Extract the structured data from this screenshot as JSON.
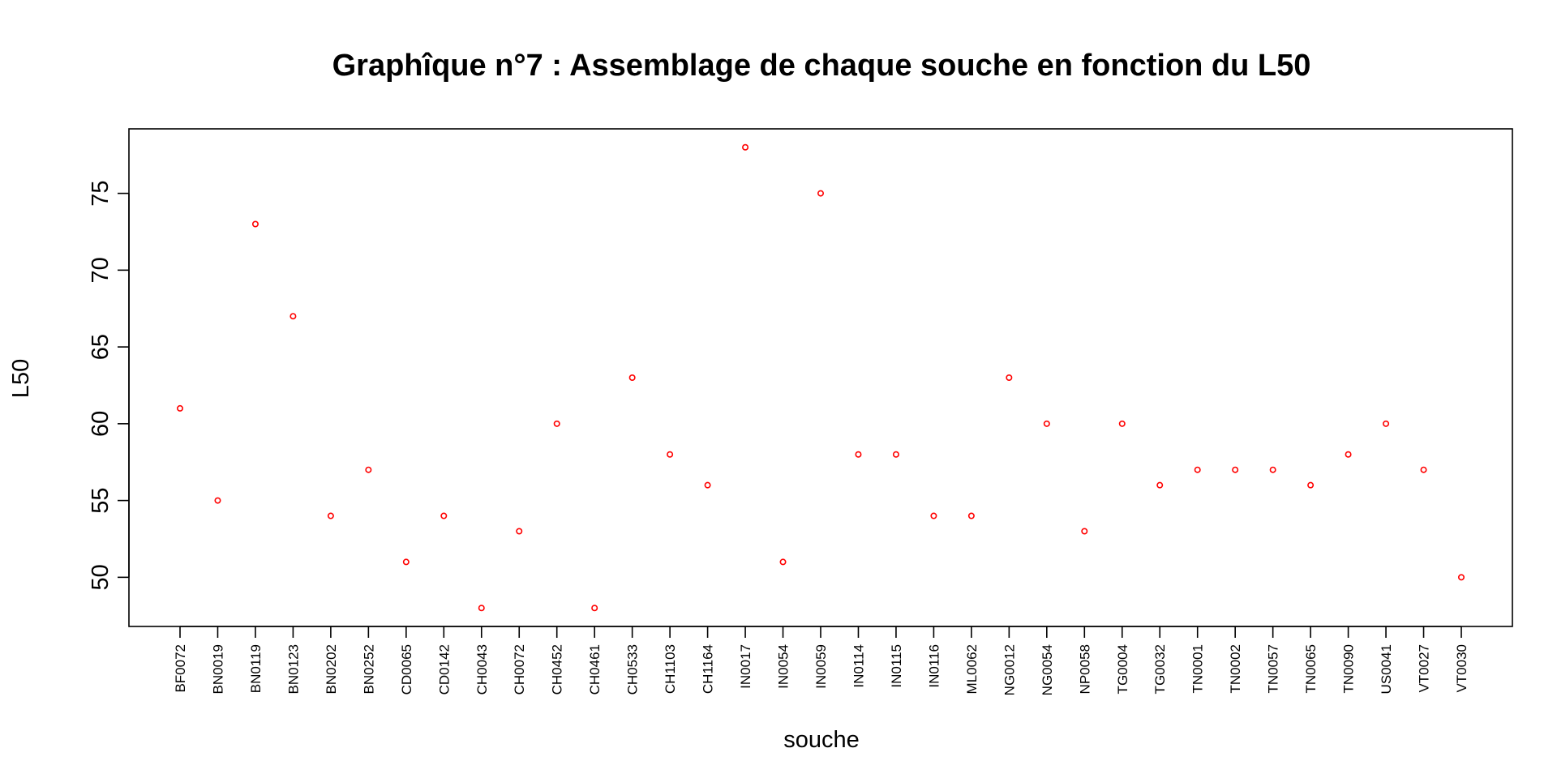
{
  "chart_data": {
    "type": "scatter",
    "title": "Graphîque n°7 : Assemblage de chaque souche en fonction du L50",
    "xlabel": "souche",
    "ylabel": "L50",
    "ylim": [
      46.8,
      79.2
    ],
    "yticks": [
      50,
      55,
      60,
      65,
      70,
      75
    ],
    "grid": false,
    "point_color": "#ff0000",
    "categories": [
      "BF0072",
      "BN0019",
      "BN0119",
      "BN0123",
      "BN0202",
      "BN0252",
      "CD0065",
      "CD0142",
      "CH0043",
      "CH0072",
      "CH0452",
      "CH0461",
      "CH0533",
      "CH1103",
      "CH1164",
      "IN0017",
      "IN0054",
      "IN0059",
      "IN0114",
      "IN0115",
      "IN0116",
      "ML0062",
      "NG0012",
      "NG0054",
      "NP0058",
      "TG0004",
      "TG0032",
      "TN0001",
      "TN0002",
      "TN0057",
      "TN0065",
      "TN0090",
      "US0041",
      "VT0027",
      "VT0030"
    ],
    "values": [
      61,
      55,
      73,
      67,
      54,
      57,
      51,
      54,
      48,
      53,
      60,
      48,
      63,
      58,
      56,
      78,
      51,
      75,
      58,
      58,
      54,
      54,
      63,
      60,
      53,
      60,
      56,
      57,
      57,
      57,
      56,
      58,
      60,
      57,
      50
    ]
  }
}
